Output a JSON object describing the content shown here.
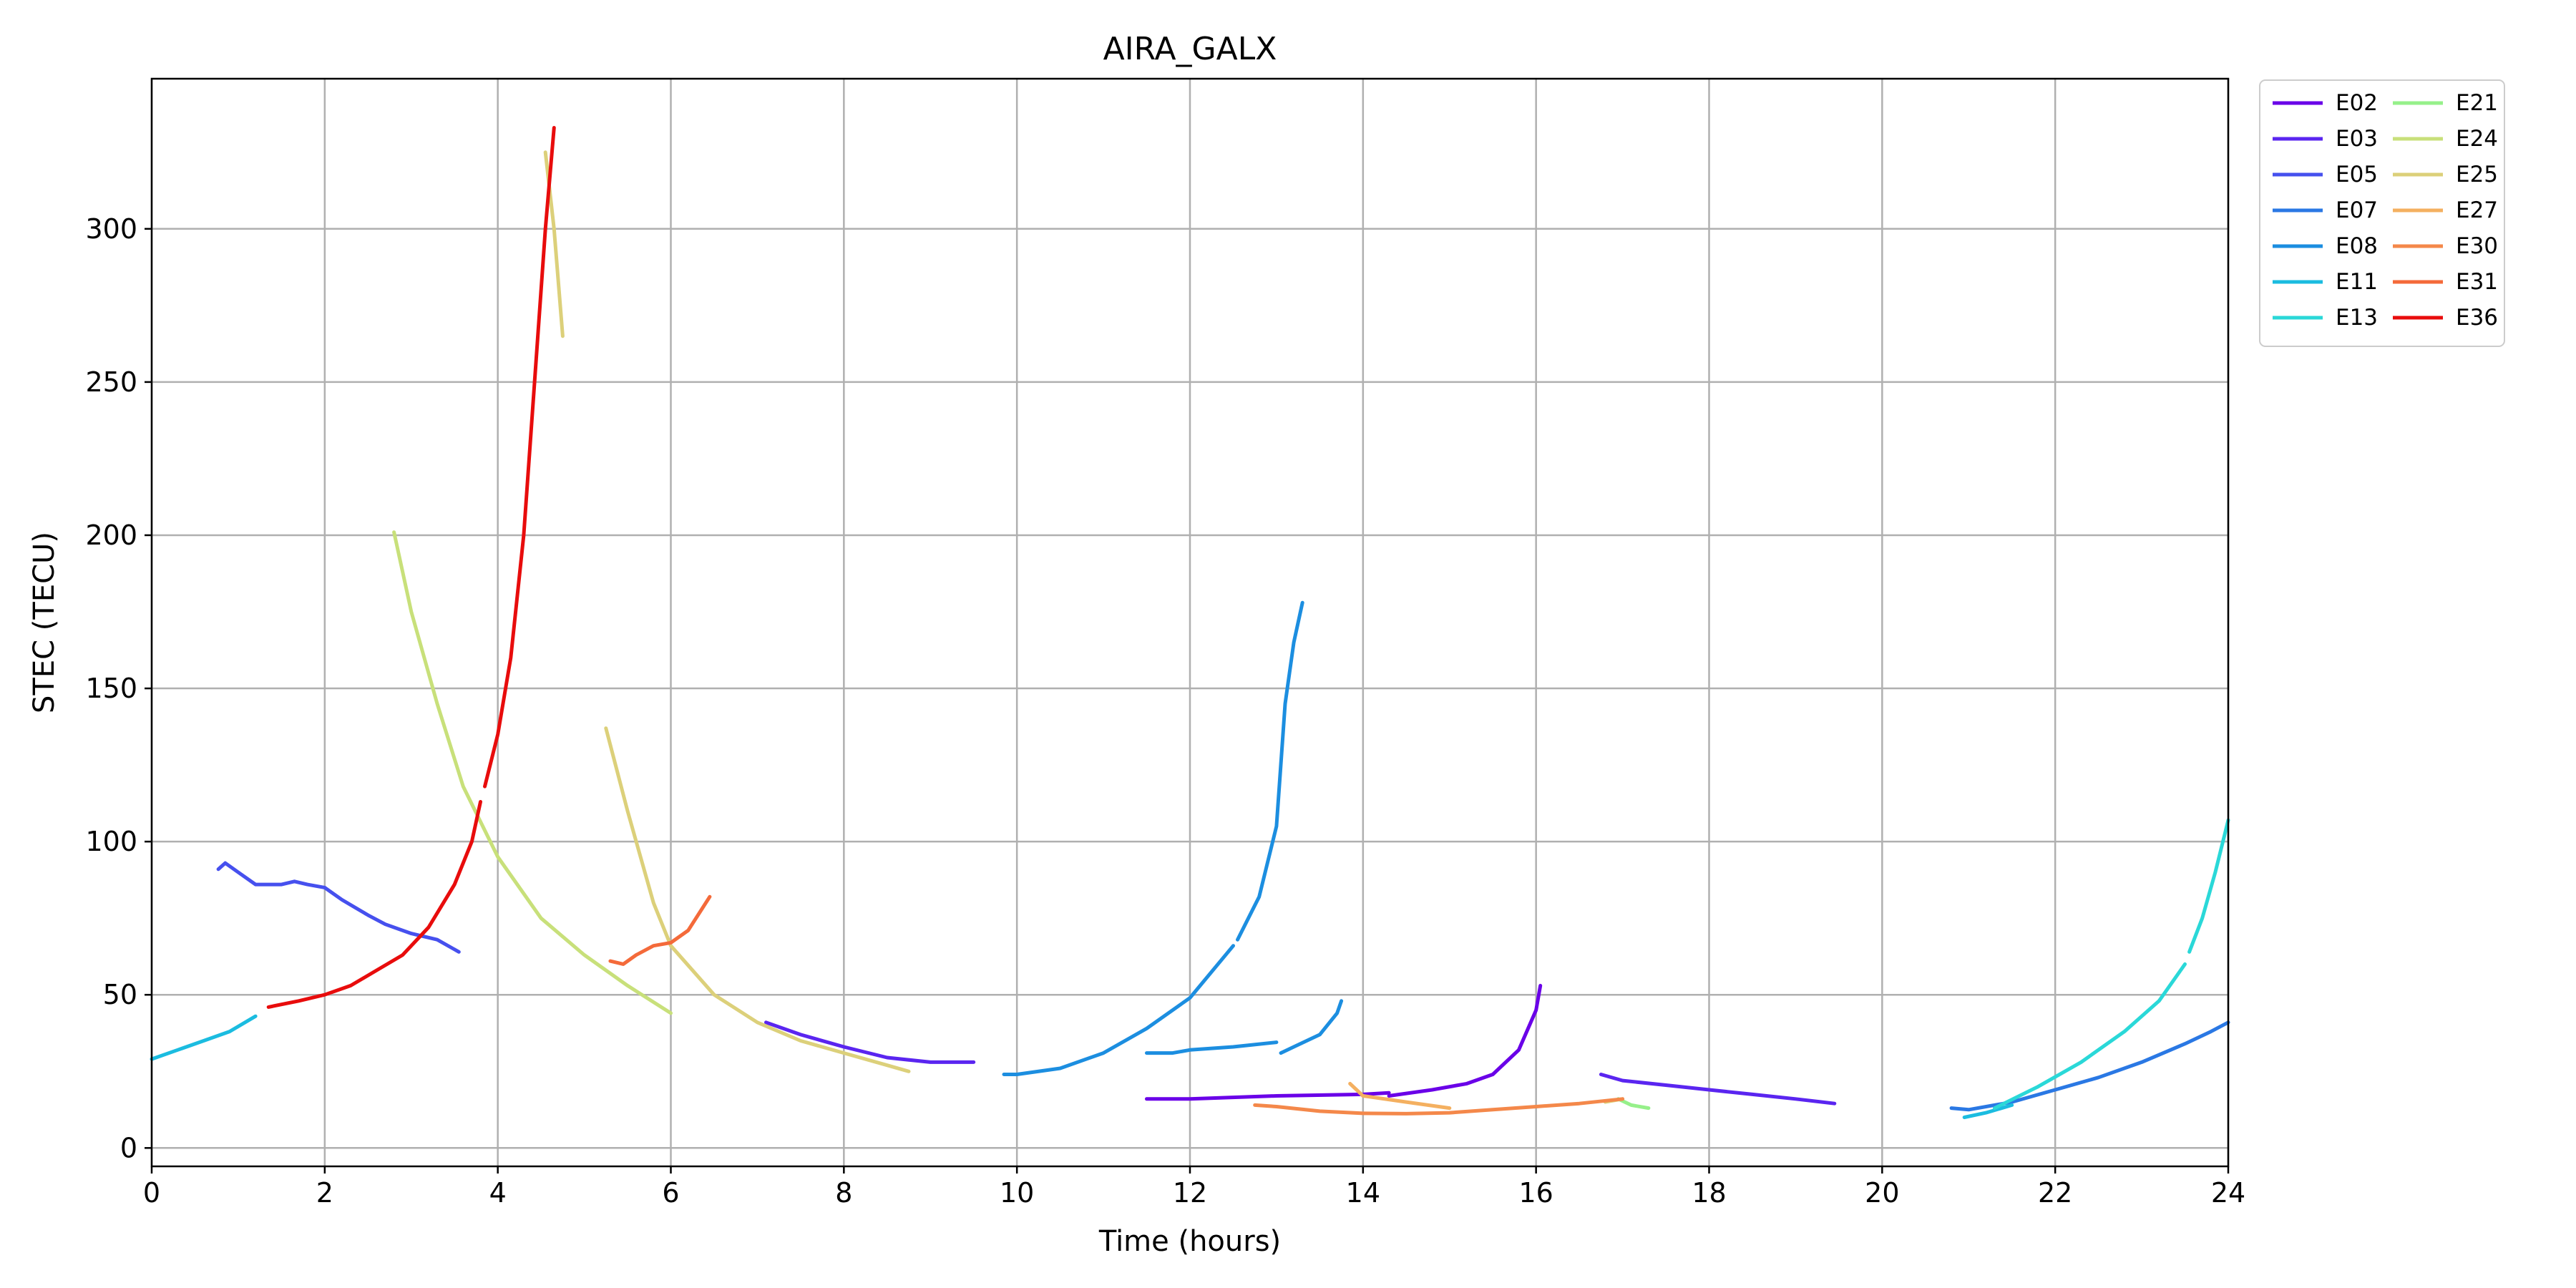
{
  "chart_data": {
    "type": "line",
    "title": "AIRA_GALX",
    "xlabel": "Time (hours)",
    "ylabel": "STEC (TECU)",
    "xlim": [
      0,
      24
    ],
    "ylim": [
      -6,
      349
    ],
    "xticks": [
      0,
      2,
      4,
      6,
      8,
      10,
      12,
      14,
      16,
      18,
      20,
      22,
      24
    ],
    "yticks": [
      0,
      50,
      100,
      150,
      200,
      250,
      300
    ],
    "grid": true,
    "legend_position": "outside-top-right",
    "legend_columns": 2,
    "series": [
      {
        "name": "E02",
        "color": "#6a00e8",
        "segments": [
          [
            [
              11.5,
              16
            ],
            [
              12,
              16
            ],
            [
              13,
              17
            ],
            [
              14,
              17.5
            ],
            [
              14.3,
              18
            ]
          ],
          [
            [
              14.3,
              17
            ],
            [
              14.8,
              19
            ],
            [
              15.2,
              21
            ],
            [
              15.5,
              24
            ],
            [
              15.8,
              32
            ],
            [
              16,
              45
            ],
            [
              16.05,
              53
            ]
          ]
        ]
      },
      {
        "name": "E03",
        "color": "#5a25f0",
        "segments": [
          [
            [
              7.1,
              41
            ],
            [
              7.5,
              37
            ],
            [
              8,
              33
            ],
            [
              8.5,
              29.5
            ],
            [
              9,
              28
            ],
            [
              9.5,
              28
            ]
          ],
          [
            [
              16.75,
              24
            ],
            [
              17,
              22
            ],
            [
              17.5,
              20.5
            ],
            [
              18,
              19
            ],
            [
              18.5,
              17.5
            ],
            [
              19,
              16
            ],
            [
              19.45,
              14.5
            ]
          ]
        ]
      },
      {
        "name": "E05",
        "color": "#4650ee",
        "segments": [
          [
            [
              0.77,
              91
            ],
            [
              0.85,
              93
            ],
            [
              1.0,
              90
            ],
            [
              1.2,
              86
            ],
            [
              1.5,
              86
            ],
            [
              1.65,
              87
            ],
            [
              1.8,
              86
            ],
            [
              2.0,
              85
            ],
            [
              2.2,
              81
            ],
            [
              2.5,
              76
            ],
            [
              2.7,
              73
            ],
            [
              3.0,
              70
            ],
            [
              3.3,
              68
            ],
            [
              3.55,
              64
            ]
          ]
        ]
      },
      {
        "name": "E07",
        "color": "#2a78e4",
        "segments": [
          [
            [
              20.8,
              13
            ],
            [
              21,
              12.5
            ],
            [
              21.5,
              15
            ],
            [
              22,
              19
            ],
            [
              22.5,
              23
            ],
            [
              23,
              28
            ],
            [
              23.5,
              34
            ],
            [
              23.8,
              38
            ],
            [
              24,
              41
            ]
          ]
        ]
      },
      {
        "name": "E08",
        "color": "#1c8ee0",
        "segments": [
          [
            [
              9.85,
              24
            ],
            [
              10,
              24
            ],
            [
              10.5,
              26
            ],
            [
              11,
              31
            ],
            [
              11.5,
              39
            ],
            [
              12,
              49
            ],
            [
              12.5,
              66
            ]
          ],
          [
            [
              12.55,
              68
            ],
            [
              12.8,
              82
            ],
            [
              13,
              105
            ],
            [
              13.1,
              145
            ],
            [
              13.2,
              165
            ],
            [
              13.3,
              178
            ]
          ],
          [
            [
              11.5,
              31
            ],
            [
              11.8,
              31
            ],
            [
              12,
              32
            ],
            [
              12.5,
              33
            ],
            [
              13,
              34.5
            ]
          ],
          [
            [
              13.05,
              31
            ],
            [
              13.2,
              33
            ],
            [
              13.5,
              37
            ],
            [
              13.7,
              44
            ],
            [
              13.75,
              48
            ]
          ]
        ]
      },
      {
        "name": "E11",
        "color": "#1bbce0",
        "segments": [
          [
            [
              0,
              29
            ],
            [
              0.3,
              32
            ],
            [
              0.6,
              35
            ],
            [
              0.9,
              38
            ],
            [
              1.2,
              43
            ]
          ],
          [
            [
              20.95,
              10
            ],
            [
              21.2,
              11.5
            ],
            [
              21.5,
              14
            ]
          ]
        ]
      },
      {
        "name": "E13",
        "color": "#2ad8d8",
        "segments": [
          [
            [
              21.3,
              13
            ],
            [
              21.8,
              20
            ],
            [
              22.3,
              28
            ],
            [
              22.8,
              38
            ],
            [
              23.2,
              48
            ],
            [
              23.5,
              60
            ]
          ],
          [
            [
              23.55,
              64
            ],
            [
              23.7,
              75
            ],
            [
              23.85,
              90
            ],
            [
              24,
              107
            ]
          ]
        ]
      },
      {
        "name": "E21",
        "color": "#96f08a",
        "segments": [
          [
            [
              16.95,
              16
            ],
            [
              17.1,
              14
            ],
            [
              17.3,
              13
            ]
          ]
        ]
      },
      {
        "name": "E24",
        "color": "#c8e07a",
        "segments": [
          [
            [
              2.8,
              201
            ],
            [
              3,
              175
            ],
            [
              3.3,
              145
            ],
            [
              3.6,
              118
            ],
            [
              4,
              95
            ],
            [
              4.5,
              75
            ],
            [
              5,
              63
            ],
            [
              5.5,
              53
            ],
            [
              6,
              44
            ]
          ]
        ]
      },
      {
        "name": "E25",
        "color": "#dcd07a",
        "segments": [
          [
            [
              4.55,
              325
            ],
            [
              4.65,
              300
            ],
            [
              4.75,
              265
            ]
          ],
          [
            [
              5.25,
              137
            ],
            [
              5.5,
              110
            ],
            [
              5.8,
              80
            ],
            [
              6,
              66
            ],
            [
              6.5,
              50
            ],
            [
              7,
              41
            ],
            [
              7.5,
              35
            ],
            [
              8,
              31
            ],
            [
              8.5,
              27
            ],
            [
              8.75,
              25
            ]
          ],
          [
            [
              16.8,
              15
            ],
            [
              17.0,
              16
            ]
          ]
        ]
      },
      {
        "name": "E27",
        "color": "#f4b060",
        "segments": [
          [
            [
              13.85,
              21
            ],
            [
              14,
              17
            ],
            [
              14.5,
              15
            ],
            [
              15,
              13
            ]
          ]
        ]
      },
      {
        "name": "E30",
        "color": "#f4884a",
        "segments": [
          [
            [
              12.75,
              14
            ],
            [
              13,
              13.5
            ],
            [
              13.5,
              12
            ],
            [
              14,
              11.3
            ],
            [
              14.5,
              11.2
            ],
            [
              15,
              11.5
            ],
            [
              15.5,
              12.5
            ],
            [
              16,
              13.5
            ],
            [
              16.5,
              14.5
            ],
            [
              17,
              16
            ]
          ]
        ]
      },
      {
        "name": "E31",
        "color": "#f46a3a",
        "segments": [
          [
            [
              5.3,
              61
            ],
            [
              5.45,
              60
            ],
            [
              5.6,
              63
            ],
            [
              5.8,
              66
            ],
            [
              6,
              67
            ],
            [
              6.2,
              71
            ],
            [
              6.45,
              82
            ]
          ]
        ]
      },
      {
        "name": "E36",
        "color": "#e80c0c",
        "segments": [
          [
            [
              1.35,
              46
            ],
            [
              1.7,
              48
            ],
            [
              2,
              50
            ],
            [
              2.3,
              53
            ],
            [
              2.6,
              58
            ],
            [
              2.9,
              63
            ],
            [
              3.2,
              72
            ],
            [
              3.5,
              86
            ],
            [
              3.7,
              100
            ],
            [
              3.8,
              113
            ]
          ],
          [
            [
              3.85,
              118
            ],
            [
              4,
              135
            ],
            [
              4.15,
              160
            ],
            [
              4.3,
              200
            ],
            [
              4.45,
              260
            ],
            [
              4.55,
              300
            ],
            [
              4.65,
              333
            ]
          ]
        ]
      }
    ]
  }
}
